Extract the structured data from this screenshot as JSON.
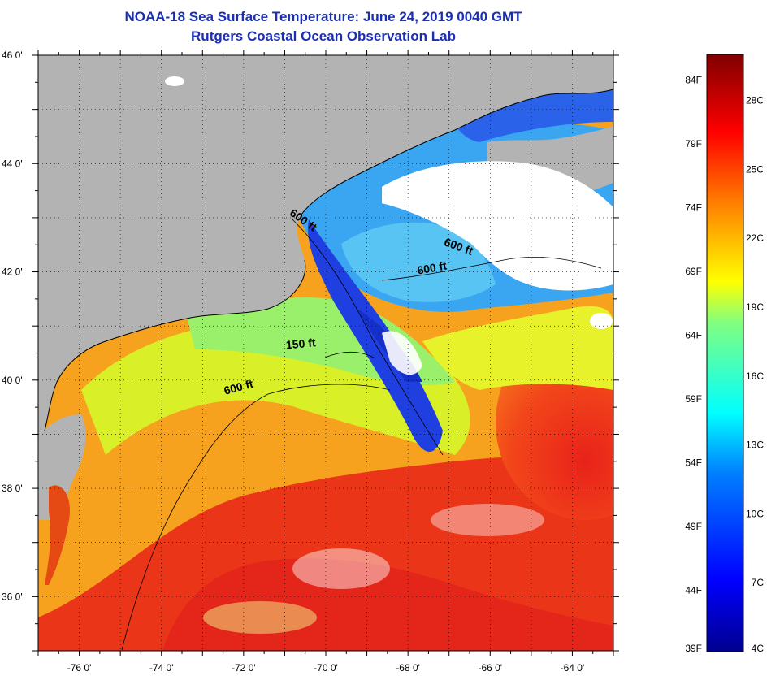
{
  "title": "NOAA-18 Sea Surface Temperature:  June 24, 2019 0040 GMT",
  "subtitle": "Rutgers Coastal Ocean Observation Lab",
  "map": {
    "lon_range": [
      -77,
      -63
    ],
    "lat_range": [
      35,
      46
    ],
    "lon_ticks": [
      {
        "value": -76,
        "label": "-76 0'"
      },
      {
        "value": -74,
        "label": "-74 0'"
      },
      {
        "value": -72,
        "label": "-72 0'"
      },
      {
        "value": -70,
        "label": "-70 0'"
      },
      {
        "value": -68,
        "label": "-68 0'"
      },
      {
        "value": -66,
        "label": "-66 0'"
      },
      {
        "value": -64,
        "label": "-64 0'"
      }
    ],
    "lat_ticks": [
      {
        "value": 46,
        "label": "46 0'"
      },
      {
        "value": 44,
        "label": "44 0'"
      },
      {
        "value": 42,
        "label": "42 0'"
      },
      {
        "value": 40,
        "label": "40 0'"
      },
      {
        "value": 38,
        "label": "38 0'"
      },
      {
        "value": 36,
        "label": "36 0'"
      }
    ],
    "contour_labels": [
      {
        "text": "600 ft",
        "lon": -70.6,
        "lat": 42.9
      },
      {
        "text": "600 ft",
        "lon": -66.8,
        "lat": 42.4
      },
      {
        "text": "600 ft",
        "lon": -67.4,
        "lat": 42.0
      },
      {
        "text": "150 ft",
        "lon": -70.6,
        "lat": 40.6
      },
      {
        "text": "600 ft",
        "lon": -72.1,
        "lat": 39.8
      }
    ],
    "land_color": "#b3b3b3",
    "cloud_color": "#ffffff"
  },
  "colorbar": {
    "min_c": 4,
    "max_c": 30,
    "fahrenheit_labels": [
      {
        "value": 39,
        "label": "39F"
      },
      {
        "value": 44,
        "label": "44F"
      },
      {
        "value": 49,
        "label": "49F"
      },
      {
        "value": 54,
        "label": "54F"
      },
      {
        "value": 59,
        "label": "59F"
      },
      {
        "value": 64,
        "label": "64F"
      },
      {
        "value": 69,
        "label": "69F"
      },
      {
        "value": 74,
        "label": "74F"
      },
      {
        "value": 79,
        "label": "79F"
      },
      {
        "value": 84,
        "label": "84F"
      }
    ],
    "celsius_labels": [
      {
        "value": 4,
        "label": "4C"
      },
      {
        "value": 7,
        "label": "7C"
      },
      {
        "value": 10,
        "label": "10C"
      },
      {
        "value": 13,
        "label": "13C"
      },
      {
        "value": 16,
        "label": "16C"
      },
      {
        "value": 19,
        "label": "19C"
      },
      {
        "value": 22,
        "label": "22C"
      },
      {
        "value": 25,
        "label": "25C"
      },
      {
        "value": 28,
        "label": "28C"
      }
    ]
  }
}
